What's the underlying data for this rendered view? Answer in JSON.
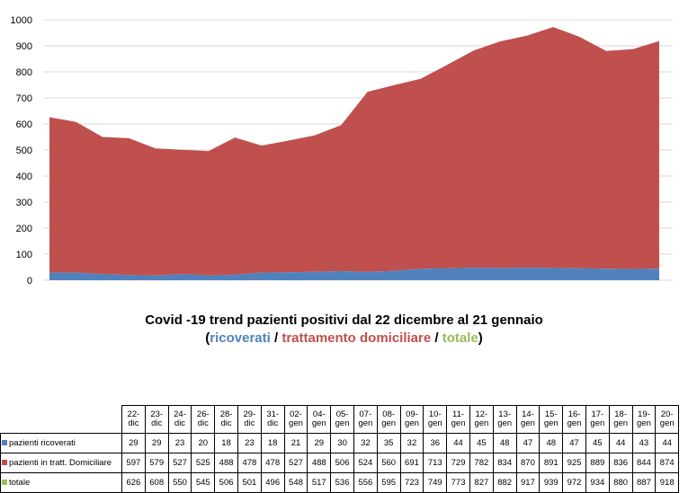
{
  "chart_data": {
    "type": "area",
    "stacked": true,
    "categories": [
      "22-dic",
      "23-dic",
      "24-dic",
      "26-dic",
      "28-dic",
      "29-dic",
      "31-dic",
      "02-gen",
      "04-gen",
      "05-gen",
      "07-gen",
      "08-gen",
      "09-gen",
      "10-gen",
      "11-gen",
      "12-gen",
      "13-gen",
      "14-gen",
      "15-gen",
      "16-gen",
      "17-gen",
      "18-gen",
      "19-gen",
      "20-gen"
    ],
    "series": [
      {
        "name": "pazienti ricoverati",
        "color": "#4f81bd",
        "values": [
          29,
          29,
          23,
          20,
          18,
          23,
          18,
          21,
          29,
          30,
          32,
          35,
          32,
          36,
          44,
          45,
          48,
          47,
          48,
          47,
          45,
          44,
          43,
          44
        ]
      },
      {
        "name": "pazienti in tratt. Domiciliare",
        "color": "#c0504d",
        "values": [
          597,
          579,
          527,
          525,
          488,
          478,
          478,
          527,
          488,
          506,
          524,
          560,
          691,
          713,
          729,
          782,
          834,
          870,
          891,
          925,
          889,
          836,
          844,
          874
        ]
      },
      {
        "name": "totale",
        "color": "#9bbb59",
        "values": [
          626,
          608,
          550,
          545,
          506,
          501,
          496,
          548,
          517,
          536,
          556,
          595,
          723,
          749,
          773,
          827,
          882,
          917,
          939,
          972,
          934,
          880,
          887,
          918
        ]
      }
    ],
    "title": "Covid -19 trend pazienti positivi dal 22 dicembre al 21 gennaio",
    "subtitle": {
      "open": "(",
      "part1": "ricoverati",
      "sep1": " / ",
      "part2": "trattamento domiciliare",
      "sep2": " / ",
      "part3": "totale",
      "close": ")"
    },
    "y_ticks": [
      "0",
      "100",
      "200",
      "300",
      "400",
      "500",
      "600",
      "700",
      "800",
      "900",
      "1000"
    ],
    "ylim": [
      0,
      1000
    ],
    "grid": true,
    "legend": "table-below"
  },
  "colors": {
    "ricoverati": "#4f81bd",
    "domiciliare": "#c0504d",
    "totale": "#9bbb59",
    "grid": "#d9d9d9"
  }
}
